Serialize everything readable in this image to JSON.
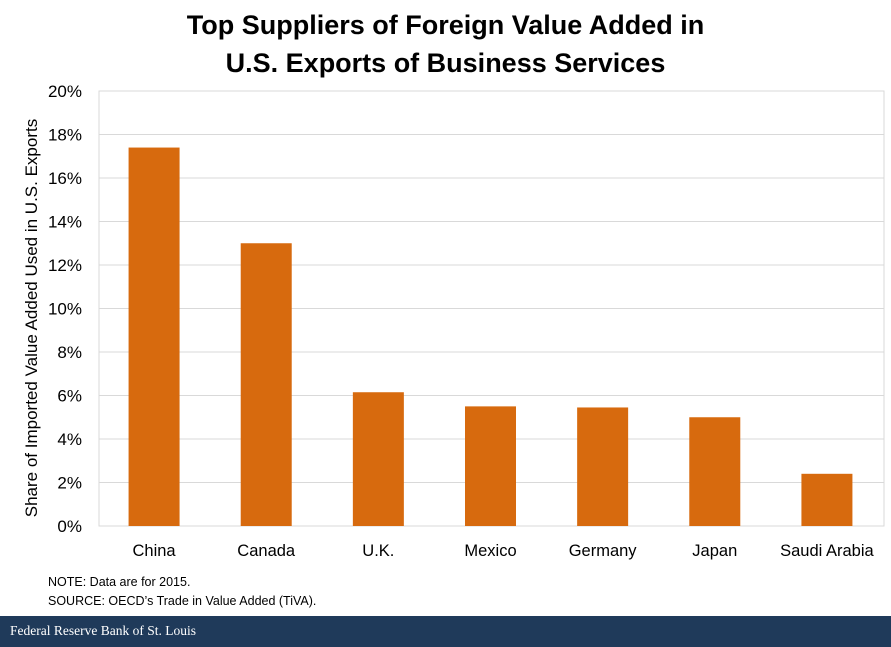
{
  "chart_data": {
    "type": "bar",
    "title": [
      "Top Suppliers of Foreign Value Added in",
      "U.S. Exports of Business Services"
    ],
    "xlabel": "",
    "ylabel": "Share of Imported Value Added Used in U.S. Exports",
    "categories": [
      "China",
      "Canada",
      "U.K.",
      "Mexico",
      "Germany",
      "Japan",
      "Saudi Arabia"
    ],
    "values": [
      17.4,
      13.0,
      6.15,
      5.5,
      5.45,
      5.0,
      2.4
    ],
    "ylim": [
      0,
      20
    ],
    "yticks": [
      0,
      2,
      4,
      6,
      8,
      10,
      12,
      14,
      16,
      18,
      20
    ],
    "ytick_labels": [
      "0%",
      "2%",
      "4%",
      "6%",
      "8%",
      "10%",
      "12%",
      "14%",
      "16%",
      "18%",
      "20%"
    ],
    "bar_color": "#d76a0e",
    "grid_color": "#d9d9d9",
    "grid": true
  },
  "notes": {
    "note": "NOTE: Data are for 2015.",
    "source": "SOURCE: OECD’s Trade in Value Added (TiVA)."
  },
  "footer": {
    "brand": "Federal Reserve Bank of St. Louis"
  }
}
